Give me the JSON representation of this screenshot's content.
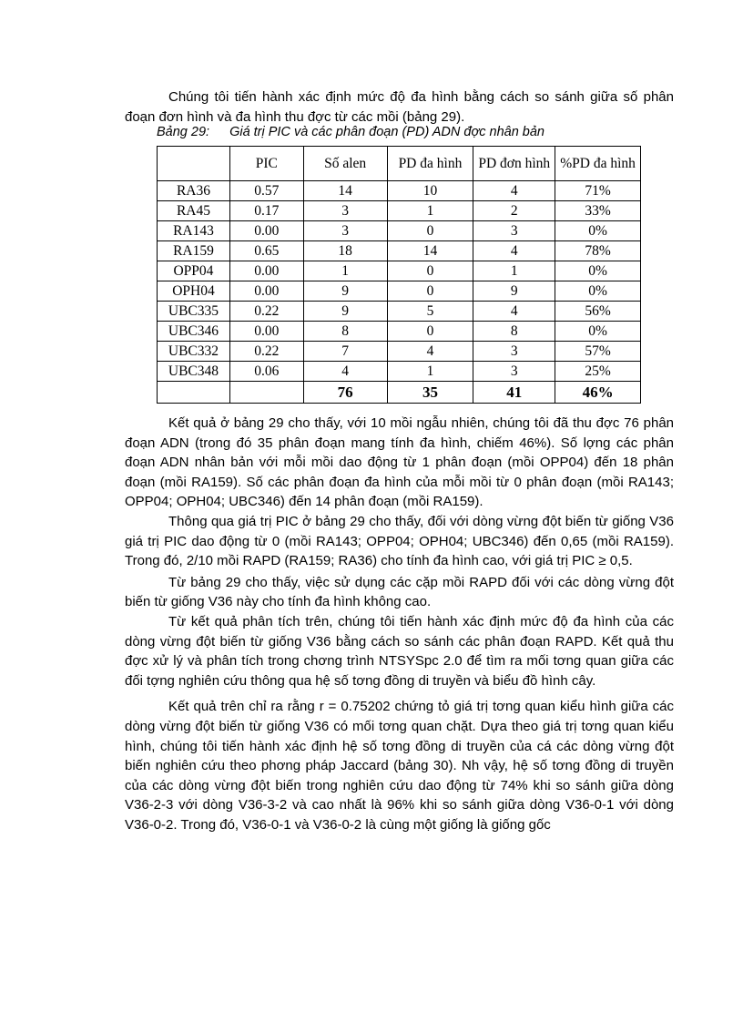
{
  "intro": "Chúng tôi tiến hành xác định mức độ đa hình bằng cách so sánh giữa số phân đoạn đơn hình và đa hình thu đợc  từ các mồi (bảng 29).",
  "table": {
    "caption_label": "Bảng 29:",
    "caption_text": "Giá trị PIC và các phân  đoạn (PD) ADN đợc  nhân bản",
    "headers": [
      "",
      "PIC",
      "Số alen",
      "PD đa hình",
      "PD đơn hình",
      "%PD đa hình"
    ],
    "rows": [
      [
        "RA36",
        "0.57",
        "14",
        "10",
        "4",
        "71%"
      ],
      [
        "RA45",
        "0.17",
        "3",
        "1",
        "2",
        "33%"
      ],
      [
        "RA143",
        "0.00",
        "3",
        "0",
        "3",
        "0%"
      ],
      [
        "RA159",
        "0.65",
        "18",
        "14",
        "4",
        "78%"
      ],
      [
        "OPP04",
        "0.00",
        "1",
        "0",
        "1",
        "0%"
      ],
      [
        "OPH04",
        "0.00",
        "9",
        "0",
        "9",
        "0%"
      ],
      [
        "UBC335",
        "0.22",
        "9",
        "5",
        "4",
        "56%"
      ],
      [
        "UBC346",
        "0.00",
        "8",
        "0",
        "8",
        "0%"
      ],
      [
        "UBC332",
        "0.22",
        "7",
        "4",
        "3",
        "57%"
      ],
      [
        "UBC348",
        "0.06",
        "4",
        "1",
        "3",
        "25%"
      ]
    ],
    "total": [
      "",
      "",
      "76",
      "35",
      "41",
      "46%"
    ]
  },
  "paragraphs": [
    "Kết quả ở bảng 29 cho thấy, với 10 mồi ngẫu nhiên, chúng tôi đã thu đợc  76 phân đoạn ADN (trong đó 35 phân đoạn mang tính đa hình, chiếm 46%). Số lợng  các phân đoạn ADN nhân bản với mỗi mồi dao động từ 1 phân đoạn (mồi OPP04) đến 18 phân đoạn (mồi RA159). Số các phân đoạn đa hình của mỗi mồi từ 0 phân đoạn (mồi RA143; OPP04; OPH04; UBC346) đến 14 phân đoạn (mồi RA159).",
    "Thông qua giá trị PIC ở bảng 29 cho thấy, đối với dòng vừng đột biến từ giống V36 giá trị PIC dao động từ 0 (mồi RA143; OPP04; OPH04; UBC346) đến 0,65 (mồi RA159). Trong đó, 2/10 mồi RAPD (RA159; RA36) cho tính đa hình cao, với giá trị PIC ≥ 0,5.",
    "Từ bảng 29 cho thấy, việc sử dụng các cặp mồi RAPD đối với các dòng vừng đột biến từ giống V36 này cho tính đa hình không cao.",
    "Từ kết quả phân tích trên, chúng tôi tiến hành xác định mức độ đa hình của các dòng vừng đột biến từ giống V36 bằng cách so sánh các phân đoạn RAPD. Kết quả thu đợc  xử lý và phân tích trong chơng  trình NTSYSpc 2.0 để tìm ra mối tơng  quan giữa các đối tợng  nghiên cứu thông qua hệ số tơng  đồng di truyền và biểu đồ hình cây.",
    "Kết quả trên chỉ ra rằng r = 0.75202 chứng tỏ giá trị tơng  quan kiểu hình giữa các dòng vừng đột biến từ giống V36 có mối tơng  quan chặt. Dựa theo giá trị tơng  quan kiểu hình, chúng tôi tiến hành xác định hệ số tơng  đồng di truyền của cá các dòng vừng đột biến nghiên cứu theo phơng  pháp Jaccard (bảng 30). Nh  vậy, hệ số tơng  đồng di truyền của các dòng vừng đột biến trong nghiên cứu dao động từ 74% khi so sánh giữa dòng V36-2-3 với dòng V36-3-2 và cao nhất là 96% khi so sánh giữa dòng V36-0-1 với dòng V36-0-2. Trong đó, V36-0-1 và V36-0-2 là cùng một giống là giống gốc"
  ]
}
